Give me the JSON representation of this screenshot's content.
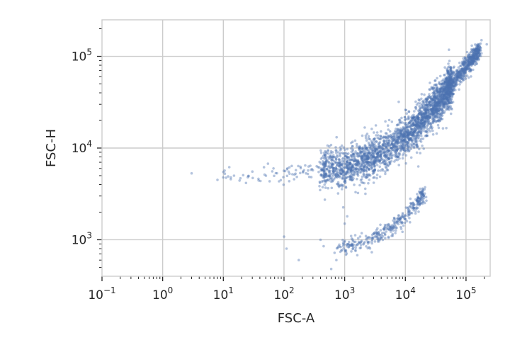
{
  "chart_data": {
    "type": "scatter",
    "xlabel": "FSC-A",
    "ylabel": "FSC-H",
    "xscale": "log",
    "yscale": "log",
    "xlim": [
      0.1,
      250000
    ],
    "ylim": [
      400,
      250000
    ],
    "grid": true,
    "colors": {
      "points": "#4c72b0",
      "grid": "#cccccc",
      "axes": "#262626"
    },
    "x_ticks": [
      {
        "exp": "−1",
        "value": 0.1
      },
      {
        "exp": "0",
        "value": 1
      },
      {
        "exp": "1",
        "value": 10
      },
      {
        "exp": "2",
        "value": 100
      },
      {
        "exp": "3",
        "value": 1000
      },
      {
        "exp": "4",
        "value": 10000
      },
      {
        "exp": "5",
        "value": 100000
      }
    ],
    "y_ticks": [
      {
        "exp": "3",
        "value": 1000
      },
      {
        "exp": "4",
        "value": 10000
      },
      {
        "exp": "5",
        "value": 100000
      }
    ],
    "clusters": [
      {
        "name": "",
        "shape": "curve",
        "count": 2600,
        "log_x_range": [
          2.6,
          4.75
        ],
        "knots_log_x": [
          2.6,
          3.0,
          3.4,
          3.8,
          4.2,
          4.6,
          4.75,
          5.0,
          5.2
        ],
        "knots_log_y": [
          3.76,
          3.8,
          3.88,
          4.02,
          4.25,
          4.55,
          4.68,
          4.9,
          5.05
        ],
        "spread_log_y": 0.11
      },
      {
        "name": "",
        "shape": "curve",
        "count": 500,
        "log_x_range": [
          4.75,
          5.2
        ],
        "knots_log_x": [
          4.75,
          5.0,
          5.2
        ],
        "knots_log_y": [
          4.68,
          4.9,
          5.05
        ],
        "spread_log_y": 0.05
      },
      {
        "name": "",
        "shape": "curve",
        "count": 350,
        "log_x_range": [
          2.9,
          4.3
        ],
        "knots_log_x": [
          2.9,
          3.4,
          3.8,
          4.1,
          4.3
        ],
        "knots_log_y": [
          2.9,
          3.0,
          3.15,
          3.33,
          3.5
        ],
        "spread_log_y": 0.05
      },
      {
        "name": "",
        "shape": "curve",
        "count": 90,
        "log_x_range": [
          1.0,
          2.9
        ],
        "knots_log_x": [
          1.0,
          2.0,
          2.9
        ],
        "knots_log_y": [
          3.68,
          3.72,
          3.76
        ],
        "spread_log_y": 0.05
      }
    ],
    "outliers": [
      [
        3,
        5300
      ],
      [
        8,
        4500
      ],
      [
        12,
        4900
      ],
      [
        15,
        5000
      ],
      [
        100,
        1080
      ],
      [
        110,
        800
      ],
      [
        175,
        600
      ],
      [
        400,
        1000
      ],
      [
        450,
        850
      ],
      [
        600,
        480
      ],
      [
        680,
        720
      ],
      [
        730,
        600
      ],
      [
        1000,
        1500
      ],
      [
        1100,
        1800
      ],
      [
        180000,
        150000
      ],
      [
        220000,
        135000
      ]
    ]
  }
}
